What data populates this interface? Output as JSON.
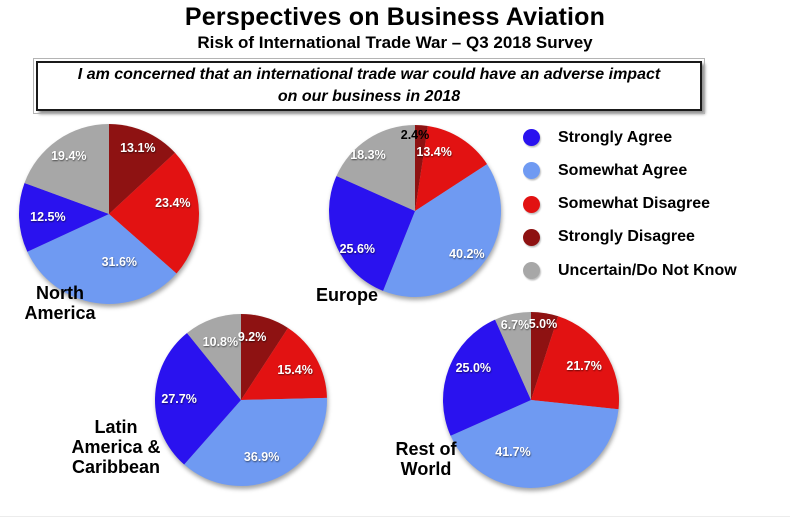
{
  "chart_data": {
    "type": "pie",
    "title": "Perspectives on Business Aviation",
    "subtitle": "Risk of International Trade War – Q3 2018 Survey",
    "question": "I am concerned that an international trade war could have an adverse impact on our business in 2018",
    "legend_position": "right",
    "value_suffix": "%",
    "series": [
      {
        "key": "strongly_agree",
        "label": "Strongly Agree",
        "color": "#2a12ef"
      },
      {
        "key": "somewhat_agree",
        "label": "Somewhat Agree",
        "color": "#6f9af2"
      },
      {
        "key": "somewhat_disagree",
        "label": "Somewhat Disagree",
        "color": "#e21212"
      },
      {
        "key": "strongly_disagree",
        "label": "Strongly Disagree",
        "color": "#8e1212"
      },
      {
        "key": "uncertain",
        "label": "Uncertain/Do Not Know",
        "color": "#a7a7a7"
      }
    ],
    "charts": [
      {
        "key": "north_america",
        "region": "North America",
        "label_lines": [
          "North",
          "America"
        ],
        "values": {
          "strongly_agree": 12.5,
          "somewhat_agree": 31.6,
          "somewhat_disagree": 23.4,
          "strongly_disagree": 13.1,
          "uncertain": 19.4
        }
      },
      {
        "key": "europe",
        "region": "Europe",
        "label_lines": [
          "Europe"
        ],
        "values": {
          "strongly_agree": 25.6,
          "somewhat_agree": 40.2,
          "somewhat_disagree": 13.4,
          "strongly_disagree": 2.4,
          "uncertain": 18.3
        }
      },
      {
        "key": "latin_america_caribbean",
        "region": "Latin America & Caribbean",
        "label_lines": [
          "Latin",
          "America &",
          "Caribbean"
        ],
        "values": {
          "strongly_agree": 27.7,
          "somewhat_agree": 36.9,
          "somewhat_disagree": 15.4,
          "strongly_disagree": 9.2,
          "uncertain": 10.8
        }
      },
      {
        "key": "rest_of_world",
        "region": "Rest of World",
        "label_lines": [
          "Rest of",
          "World"
        ],
        "values": {
          "strongly_agree": 25.0,
          "somewhat_agree": 41.7,
          "somewhat_disagree": 21.7,
          "strongly_disagree": 5.0,
          "uncertain": 6.7
        }
      }
    ]
  }
}
